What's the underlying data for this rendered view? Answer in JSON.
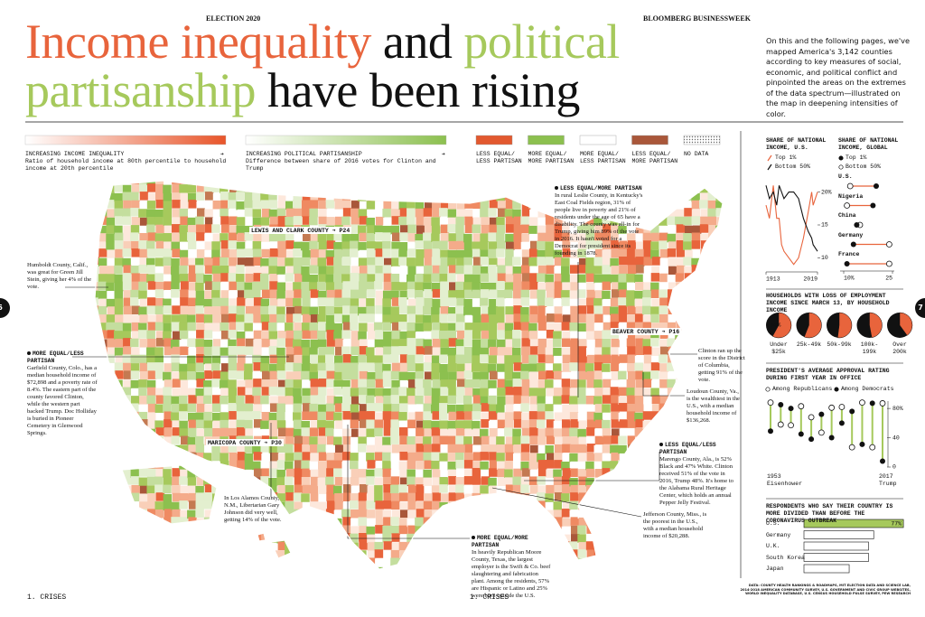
{
  "header": {
    "section": "ELECTION 2020",
    "publication": "BLOOMBERG BUSINESSWEEK",
    "title": [
      "Income inequality",
      "and",
      "political",
      "partisanship",
      "have been rising"
    ],
    "intro": "On this and the following pages, we've mapped America's 3,142 counties according to key measures of social, economic, and political conflict and pinpointed the areas on the extremes of the data spectrum—illustrated on the map in deepening intensities of color."
  },
  "legend": {
    "inequality": {
      "label": "INCREASING INCOME INEQUALITY",
      "description": "Ratio of household income at 80th percentile to household income at 20th percentile"
    },
    "partisanship": {
      "label": "INCREASING POLITICAL PARTISANSHIP",
      "description": "Difference between share of 2016 votes for Clinton and Trump"
    },
    "categories": [
      {
        "label": "LESS EQUAL/ LESS PARTISAN",
        "color": "#e2592f"
      },
      {
        "label": "MORE EQUAL/ MORE PARTISAN",
        "color": "#8cc04f"
      },
      {
        "label": "MORE EQUAL/ LESS PARTISAN",
        "color": "#ffffff"
      },
      {
        "label": "LESS EQUAL/ MORE PARTISAN",
        "color": "#a9573a"
      },
      {
        "label": "NO DATA"
      }
    ]
  },
  "map": {
    "county_links": [
      "LEWIS AND CLARK COUNTY ➔ P24",
      "BEAVER COUNTY ➔ P16",
      "MARICOPA COUNTY ➔ P30"
    ],
    "annotations": [
      {
        "text": "Humboldt County, Calif., was great for Green Jill Stein, giving her 4% of the vote."
      },
      {
        "heading": "MORE EQUAL/LESS PARTISAN",
        "text": "Garfield County, Colo., has a median household income of $72,898 and a poverty rate of 8.4%. The eastern part of the county favored Clinton, while the western part backed Trump. Doc Holliday is buried in Pioneer Cemetery in Glenwood Springs."
      },
      {
        "heading": "LESS EQUAL/MORE PARTISAN",
        "text": "In rural Leslie County, in Kentucky's East Coal Fields region, 31% of people live in poverty and 21% of residents under the age of 65 have a disability. The county was all-in for Trump, giving him 89% of the vote in 2016. It hasn't voted for a Democrat for president since its founding in 1878."
      },
      {
        "text": "Clinton ran up the score in the District of Columbia, getting 91% of the vote."
      },
      {
        "text": "Loudoun County, Va., is the wealthiest in the U.S., with a median household income of $136,268."
      },
      {
        "heading": "LESS EQUAL/LESS PARTISAN",
        "text": "Marengo County, Ala., is 52% Black and 47% White. Clinton received 51% of the vote in 2016, Trump 48%. It's home to the Alabama Rural Heritage Center, which holds an annual Pepper Jelly Festival."
      },
      {
        "text": "In Los Alamos County, N.M., Libertarian Gary Johnson did very well, getting 14% of the vote."
      },
      {
        "text": "Jefferson County, Miss., is the poorest in the U.S., with a median household income of $20,288."
      },
      {
        "heading": "MORE EQUAL/MORE PARTISAN",
        "text": "In heavily Republican Moore County, Texas, the largest employer is the Swift & Co. beef slaughtering and fabrication plant. Among the residents, 57% are Hispanic or Latino and 25% were born outside the U.S."
      }
    ]
  },
  "charts": {
    "income_us": {
      "type": "line",
      "title": "SHARE OF NATIONAL INCOME, U.S.",
      "x": [
        1913,
        1920,
        1928,
        1935,
        1940,
        1945,
        1950,
        1960,
        1970,
        1980,
        1990,
        2000,
        2007,
        2010,
        2019
      ],
      "xlim": [
        1913,
        2019
      ],
      "xticks": [
        1913,
        2019
      ],
      "ylim": [
        8,
        22
      ],
      "yticks": [
        10,
        15,
        {
          "value": 20,
          "label": "20%"
        }
      ],
      "series": [
        {
          "name": "Top 1%",
          "color": "#e8643c",
          "values": [
            18,
            16,
            21,
            16,
            16,
            12,
            11,
            10,
            9,
            10,
            13,
            17,
            20,
            18,
            20
          ]
        },
        {
          "name": "Bottom 50%",
          "color": "#111111",
          "values": [
            21,
            19,
            20,
            18,
            21,
            20,
            19,
            20,
            20,
            19,
            16,
            14,
            13,
            12,
            11
          ]
        }
      ]
    },
    "income_global": {
      "type": "dot",
      "title": "SHARE OF NATIONAL INCOME, GLOBAL",
      "categories": [
        "U.S.",
        "Nigeria",
        "China",
        "Germany",
        "France"
      ],
      "xlim": [
        10,
        25
      ],
      "xticks": [
        {
          "value": 10,
          "label": "10%"
        },
        25
      ],
      "series": [
        {
          "name": "Top 1%",
          "values": [
            20,
            19,
            14,
            13,
            11
          ]
        },
        {
          "name": "Bottom 50%",
          "values": [
            12,
            11,
            15,
            24,
            24
          ]
        }
      ]
    },
    "job_loss": {
      "type": "pie",
      "title": "HOUSEHOLDS WITH LOSS OF EMPLOYMENT INCOME SINCE MARCH 13, BY HOUSEHOLD INCOME",
      "categories": [
        "Under $25k",
        "25k-49k",
        "50k-99k",
        "100k-199k",
        "Over 200k"
      ],
      "values": [
        58,
        56,
        52,
        47,
        40
      ],
      "value_labels": [
        "58%",
        null,
        null,
        null,
        null
      ],
      "color": "#e8643c"
    },
    "approval": {
      "type": "dumbbell",
      "title": "PRESIDENT'S AVERAGE APPROVAL RATING DURING FIRST YEAR IN OFFICE",
      "categories": [
        "1953",
        null,
        null,
        null,
        null,
        null,
        null,
        null,
        null,
        null,
        null,
        "2017"
      ],
      "presidents": [
        "Eisenhower",
        null,
        null,
        null,
        null,
        null,
        null,
        null,
        null,
        null,
        null,
        "Trump"
      ],
      "ylim": [
        0,
        90
      ],
      "yticks": [
        {
          "value": 80,
          "label": "80%"
        },
        40,
        0
      ],
      "color": "#a6c95c",
      "series": [
        {
          "name": "Among Republicans",
          "values": [
            88,
            58,
            57,
            83,
            68,
            47,
            81,
            82,
            27,
            88,
            27,
            87
          ]
        },
        {
          "name": "Among Democrats",
          "values": [
            49,
            85,
            80,
            45,
            38,
            72,
            40,
            60,
            76,
            31,
            87,
            8
          ]
        }
      ]
    },
    "divided": {
      "type": "bar",
      "title": "RESPONDENTS WHO SAY THEIR COUNTRY IS MORE DIVIDED THAN BEFORE THE CORONAVIRUS OUTBREAK",
      "categories": [
        "U.S.",
        "Germany",
        "U.K.",
        "South Korea",
        "Japan"
      ],
      "values": [
        77,
        54,
        50,
        50,
        35
      ],
      "value_labels": [
        "77%",
        null,
        null,
        null,
        null
      ],
      "xlim": [
        0,
        100
      ],
      "color": "#a6c95c"
    }
  },
  "page_numbers": [
    "6",
    "7"
  ],
  "footer": {
    "section": [
      "1. CRISES",
      "1. CRISES"
    ],
    "source": "DATA: COUNTY HEALTH RANKINGS & ROADMAPS, MIT ELECTION DATA AND SCIENCE LAB, 2014-2018 AMERICAN COMMUNITY SURVEY, U.S. GOVERNMENT AND CIVIC GROUP WEBSITES, WORLD INEQUALITY DATABASE, U.S. CENSUS HOUSEHOLD PULSE SURVEY, PEW RESEARCH"
  }
}
